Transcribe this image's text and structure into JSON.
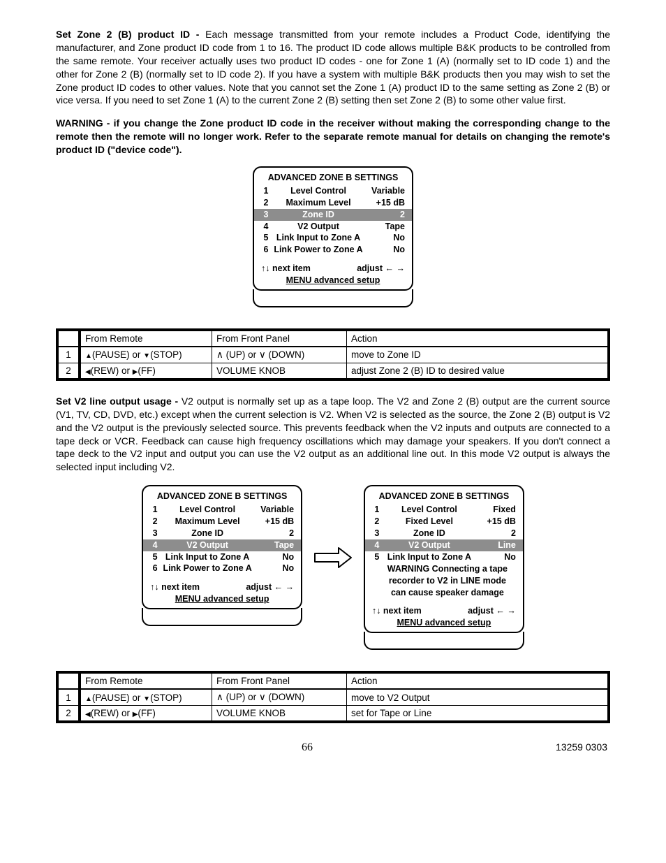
{
  "paragraphs": {
    "p1_lead": "Set Zone 2 (B)  product ID - ",
    "p1_body": "Each message transmitted from your remote includes a Product Code, identifying the manufacturer, and  Zone product ID code from 1 to 16. The product ID code allows multiple B&K products to be controlled from the same remote. Your receiver actually uses two product ID codes - one for Zone 1 (A) (normally set to ID code 1) and the other for Zone 2 (B) (normally set to ID code 2). If you have a system with multiple B&K products then you may wish to set the Zone product ID codes to other values. Note that you cannot set the Zone 1 (A)  product ID to the same setting as Zone 2 (B) or vice versa. If you need to set Zone 1 (A) to the current Zone 2 (B) setting then set Zone 2 (B) to some other value first.",
    "p2_bold": "WARNING - if you change the Zone product ID code in the receiver without making the corresponding change to the remote then the remote will no longer work. Refer to the separate remote manual for details on changing the remote's product ID (\"device code\").",
    "p3_lead": "Set V2 line output usage - ",
    "p3_body": "V2 output is normally set up as a tape loop.  The V2 and Zone 2 (B) output are the current source (V1, TV, CD, DVD, etc.) except when the current selection is V2.  When V2 is selected as the source, the Zone 2 (B) output is V2 and the V2 output is the previously selected source. This prevents feedback when the V2 inputs and outputs are connected to a tape deck or VCR. Feedback can cause high frequency oscillations which may damage your speakers. If you don't connect a tape deck to the V2 input and output you can use the V2 output as an additional line out.  In this mode V2 output is always the selected input including V2."
  },
  "osd": {
    "title": "ADVANCED ZONE B SETTINGS",
    "nav_left": "next item",
    "nav_right": "adjust",
    "footer": "MENU advanced setup",
    "menu_a": {
      "rows": [
        {
          "n": "1",
          "l": "Level Control",
          "v": "Variable",
          "sel": false
        },
        {
          "n": "2",
          "l": "Maximum Level",
          "v": "+15 dB",
          "sel": false
        },
        {
          "n": "3",
          "l": "Zone ID",
          "v": "2",
          "sel": true
        },
        {
          "n": "4",
          "l": "V2 Output",
          "v": "Tape",
          "sel": false
        },
        {
          "n": "5",
          "l": "Link Input  to Zone A",
          "v": "No",
          "sel": false
        },
        {
          "n": "6",
          "l": "Link Power to Zone A",
          "v": "No",
          "sel": false
        }
      ]
    },
    "menu_b": {
      "rows": [
        {
          "n": "1",
          "l": "Level Control",
          "v": "Variable",
          "sel": false
        },
        {
          "n": "2",
          "l": "Maximum Level",
          "v": "+15 dB",
          "sel": false
        },
        {
          "n": "3",
          "l": "Zone ID",
          "v": "2",
          "sel": false
        },
        {
          "n": "4",
          "l": "V2 Output",
          "v": "Tape",
          "sel": true
        },
        {
          "n": "5",
          "l": "Link Input  to Zone A",
          "v": "No",
          "sel": false
        },
        {
          "n": "6",
          "l": "Link Power to Zone A",
          "v": "No",
          "sel": false
        }
      ]
    },
    "menu_c": {
      "rows": [
        {
          "n": "1",
          "l": "Level Control",
          "v": "Fixed",
          "sel": false
        },
        {
          "n": "2",
          "l": "Fixed Level",
          "v": "+15 dB",
          "sel": false
        },
        {
          "n": "3",
          "l": "Zone ID",
          "v": "2",
          "sel": false
        },
        {
          "n": "4",
          "l": "V2 Output",
          "v": "Line",
          "sel": true
        },
        {
          "n": "5",
          "l": "Link Input  to Zone A",
          "v": "No",
          "sel": false
        }
      ],
      "warn": [
        "WARNING Connecting a tape",
        "recorder to V2 in LINE mode",
        "can cause speaker damage"
      ]
    }
  },
  "glyph": {
    "updn": "↑↓",
    "lr": "← →",
    "up": "▲",
    "dn": "▼",
    "lf": "◀",
    "rt": "▶",
    "and": "∧",
    "or": "∨"
  },
  "tables": {
    "hdr": {
      "remote": "From Remote",
      "panel": "From Front Panel",
      "action": "Action"
    },
    "t1": [
      {
        "n": "1",
        "remote_a": "(PAUSE) or ",
        "remote_b": "(STOP)",
        "panel_a": " (UP) or ",
        "panel_b": " (DOWN)",
        "action": "move to Zone ID"
      },
      {
        "n": "2",
        "remote_a": "(REW) or ",
        "remote_b": "(FF)",
        "panel_plain": "VOLUME KNOB",
        "action": "adjust Zone 2 (B) ID to desired value"
      }
    ],
    "t2": [
      {
        "n": "1",
        "remote_a": "(PAUSE) or ",
        "remote_b": "(STOP)",
        "panel_a": " (UP) or ",
        "panel_b": " (DOWN)",
        "action": "move to V2 Output"
      },
      {
        "n": "2",
        "remote_a": "(REW) or ",
        "remote_b": "(FF)",
        "panel_plain": "VOLUME KNOB",
        "action": "set for Tape or Line"
      }
    ]
  },
  "footer": {
    "page": "66",
    "doc": "13259 0303"
  }
}
